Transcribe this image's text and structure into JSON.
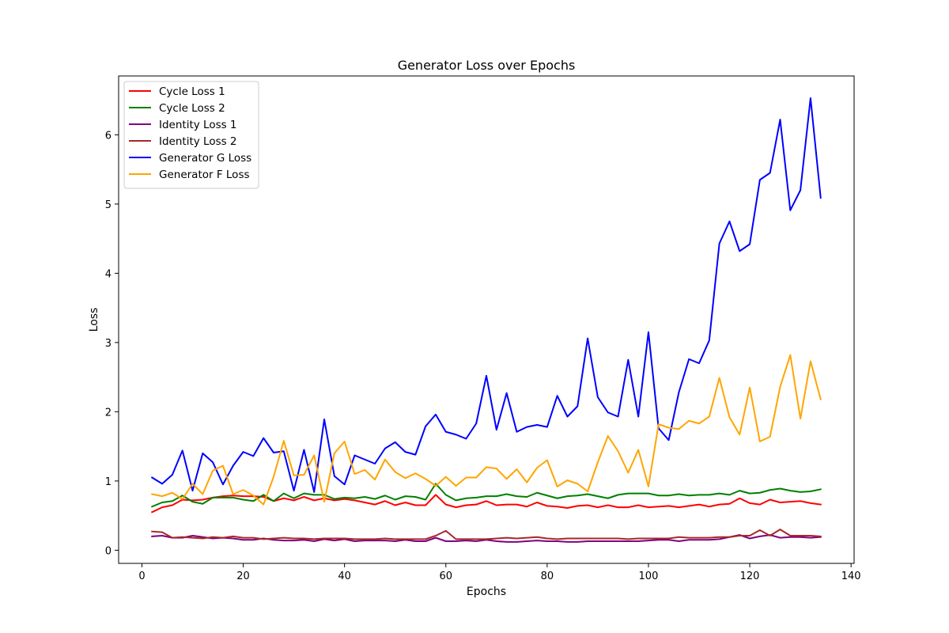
{
  "chart_data": {
    "type": "line",
    "title": "Generator Loss over Epochs",
    "xlabel": "Epochs",
    "ylabel": "Loss",
    "xlim": [
      -4.6,
      140.6
    ],
    "ylim": [
      -0.19,
      6.85
    ],
    "xticks": [
      0,
      20,
      40,
      60,
      80,
      100,
      120,
      140
    ],
    "yticks": [
      0,
      1,
      2,
      3,
      4,
      5,
      6
    ],
    "grid": false,
    "legend": "top-left",
    "x": [
      2,
      4,
      6,
      8,
      10,
      12,
      14,
      16,
      18,
      20,
      22,
      24,
      26,
      28,
      30,
      32,
      34,
      36,
      38,
      40,
      42,
      44,
      46,
      48,
      50,
      52,
      54,
      56,
      58,
      60,
      62,
      64,
      66,
      68,
      70,
      72,
      74,
      76,
      78,
      80,
      82,
      84,
      86,
      88,
      90,
      92,
      94,
      96,
      98,
      100,
      102,
      104,
      106,
      108,
      110,
      112,
      114,
      116,
      118,
      120,
      122,
      124,
      126,
      128,
      130,
      132,
      134
    ],
    "series": [
      {
        "name": "Cycle Loss 1",
        "color": "#ff0000",
        "values": [
          0.55,
          0.62,
          0.65,
          0.73,
          0.72,
          0.73,
          0.76,
          0.78,
          0.79,
          0.78,
          0.78,
          0.77,
          0.71,
          0.75,
          0.72,
          0.77,
          0.72,
          0.75,
          0.72,
          0.74,
          0.72,
          0.69,
          0.66,
          0.71,
          0.65,
          0.69,
          0.65,
          0.65,
          0.8,
          0.66,
          0.62,
          0.65,
          0.66,
          0.71,
          0.65,
          0.66,
          0.66,
          0.63,
          0.69,
          0.64,
          0.63,
          0.61,
          0.64,
          0.65,
          0.62,
          0.65,
          0.62,
          0.62,
          0.65,
          0.62,
          0.63,
          0.64,
          0.62,
          0.64,
          0.66,
          0.63,
          0.66,
          0.67,
          0.75,
          0.68,
          0.66,
          0.73,
          0.69,
          0.7,
          0.71,
          0.68,
          0.66
        ]
      },
      {
        "name": "Cycle Loss 2",
        "color": "#008000",
        "values": [
          0.63,
          0.69,
          0.71,
          0.79,
          0.7,
          0.67,
          0.76,
          0.76,
          0.76,
          0.73,
          0.71,
          0.8,
          0.71,
          0.82,
          0.75,
          0.82,
          0.8,
          0.8,
          0.74,
          0.76,
          0.75,
          0.77,
          0.74,
          0.79,
          0.73,
          0.78,
          0.77,
          0.73,
          0.96,
          0.8,
          0.72,
          0.75,
          0.76,
          0.78,
          0.78,
          0.81,
          0.78,
          0.77,
          0.83,
          0.79,
          0.75,
          0.78,
          0.79,
          0.81,
          0.78,
          0.75,
          0.8,
          0.82,
          0.82,
          0.82,
          0.79,
          0.79,
          0.81,
          0.79,
          0.8,
          0.8,
          0.82,
          0.8,
          0.86,
          0.82,
          0.83,
          0.87,
          0.89,
          0.86,
          0.84,
          0.85,
          0.88
        ]
      },
      {
        "name": "Identity Loss 1",
        "color": "#800080",
        "values": [
          0.2,
          0.21,
          0.18,
          0.18,
          0.21,
          0.19,
          0.17,
          0.18,
          0.17,
          0.15,
          0.15,
          0.17,
          0.15,
          0.14,
          0.14,
          0.15,
          0.13,
          0.16,
          0.14,
          0.16,
          0.13,
          0.14,
          0.14,
          0.14,
          0.13,
          0.15,
          0.13,
          0.13,
          0.18,
          0.13,
          0.13,
          0.14,
          0.13,
          0.15,
          0.13,
          0.12,
          0.12,
          0.13,
          0.14,
          0.13,
          0.13,
          0.12,
          0.12,
          0.13,
          0.13,
          0.13,
          0.13,
          0.13,
          0.13,
          0.14,
          0.15,
          0.15,
          0.13,
          0.15,
          0.15,
          0.15,
          0.16,
          0.19,
          0.22,
          0.17,
          0.2,
          0.22,
          0.18,
          0.19,
          0.19,
          0.18,
          0.19
        ]
      },
      {
        "name": "Identity Loss 2",
        "color": "#a52a2a",
        "values": [
          0.27,
          0.26,
          0.18,
          0.19,
          0.18,
          0.17,
          0.19,
          0.18,
          0.2,
          0.18,
          0.18,
          0.16,
          0.17,
          0.18,
          0.17,
          0.17,
          0.16,
          0.17,
          0.17,
          0.17,
          0.16,
          0.16,
          0.16,
          0.17,
          0.16,
          0.16,
          0.16,
          0.16,
          0.21,
          0.28,
          0.16,
          0.16,
          0.16,
          0.16,
          0.17,
          0.18,
          0.17,
          0.18,
          0.19,
          0.17,
          0.16,
          0.17,
          0.17,
          0.17,
          0.17,
          0.17,
          0.17,
          0.16,
          0.17,
          0.17,
          0.17,
          0.17,
          0.19,
          0.18,
          0.18,
          0.18,
          0.19,
          0.19,
          0.21,
          0.21,
          0.29,
          0.21,
          0.3,
          0.21,
          0.21,
          0.21,
          0.2
        ]
      },
      {
        "name": "Generator G Loss",
        "color": "#0000ff",
        "values": [
          1.05,
          0.96,
          1.09,
          1.44,
          0.86,
          1.4,
          1.27,
          0.95,
          1.22,
          1.42,
          1.36,
          1.62,
          1.41,
          1.43,
          0.86,
          1.45,
          0.84,
          1.89,
          1.07,
          0.95,
          1.37,
          1.31,
          1.25,
          1.47,
          1.56,
          1.42,
          1.38,
          1.79,
          1.96,
          1.71,
          1.67,
          1.61,
          1.83,
          2.52,
          1.74,
          2.27,
          1.71,
          1.78,
          1.81,
          1.78,
          2.23,
          1.93,
          2.08,
          3.06,
          2.21,
          1.99,
          1.93,
          2.75,
          1.93,
          3.15,
          1.76,
          1.59,
          2.28,
          2.76,
          2.7,
          3.03,
          4.43,
          4.75,
          4.32,
          4.42,
          5.35,
          5.45,
          6.22,
          4.91,
          5.2,
          6.53,
          5.09
        ]
      },
      {
        "name": "Generator F Loss",
        "color": "#ffa500",
        "values": [
          0.81,
          0.78,
          0.83,
          0.74,
          0.96,
          0.81,
          1.15,
          1.22,
          0.81,
          0.87,
          0.79,
          0.66,
          1.06,
          1.58,
          1.08,
          1.09,
          1.37,
          0.7,
          1.4,
          1.57,
          1.1,
          1.16,
          1.02,
          1.31,
          1.13,
          1.04,
          1.11,
          1.03,
          0.93,
          1.06,
          0.93,
          1.05,
          1.05,
          1.2,
          1.18,
          1.03,
          1.17,
          0.98,
          1.19,
          1.3,
          0.92,
          1.01,
          0.96,
          0.85,
          1.27,
          1.65,
          1.43,
          1.12,
          1.45,
          0.92,
          1.82,
          1.77,
          1.75,
          1.87,
          1.83,
          1.93,
          2.49,
          1.92,
          1.67,
          2.35,
          1.57,
          1.64,
          2.36,
          2.82,
          1.9,
          2.73,
          2.18
        ]
      }
    ]
  }
}
